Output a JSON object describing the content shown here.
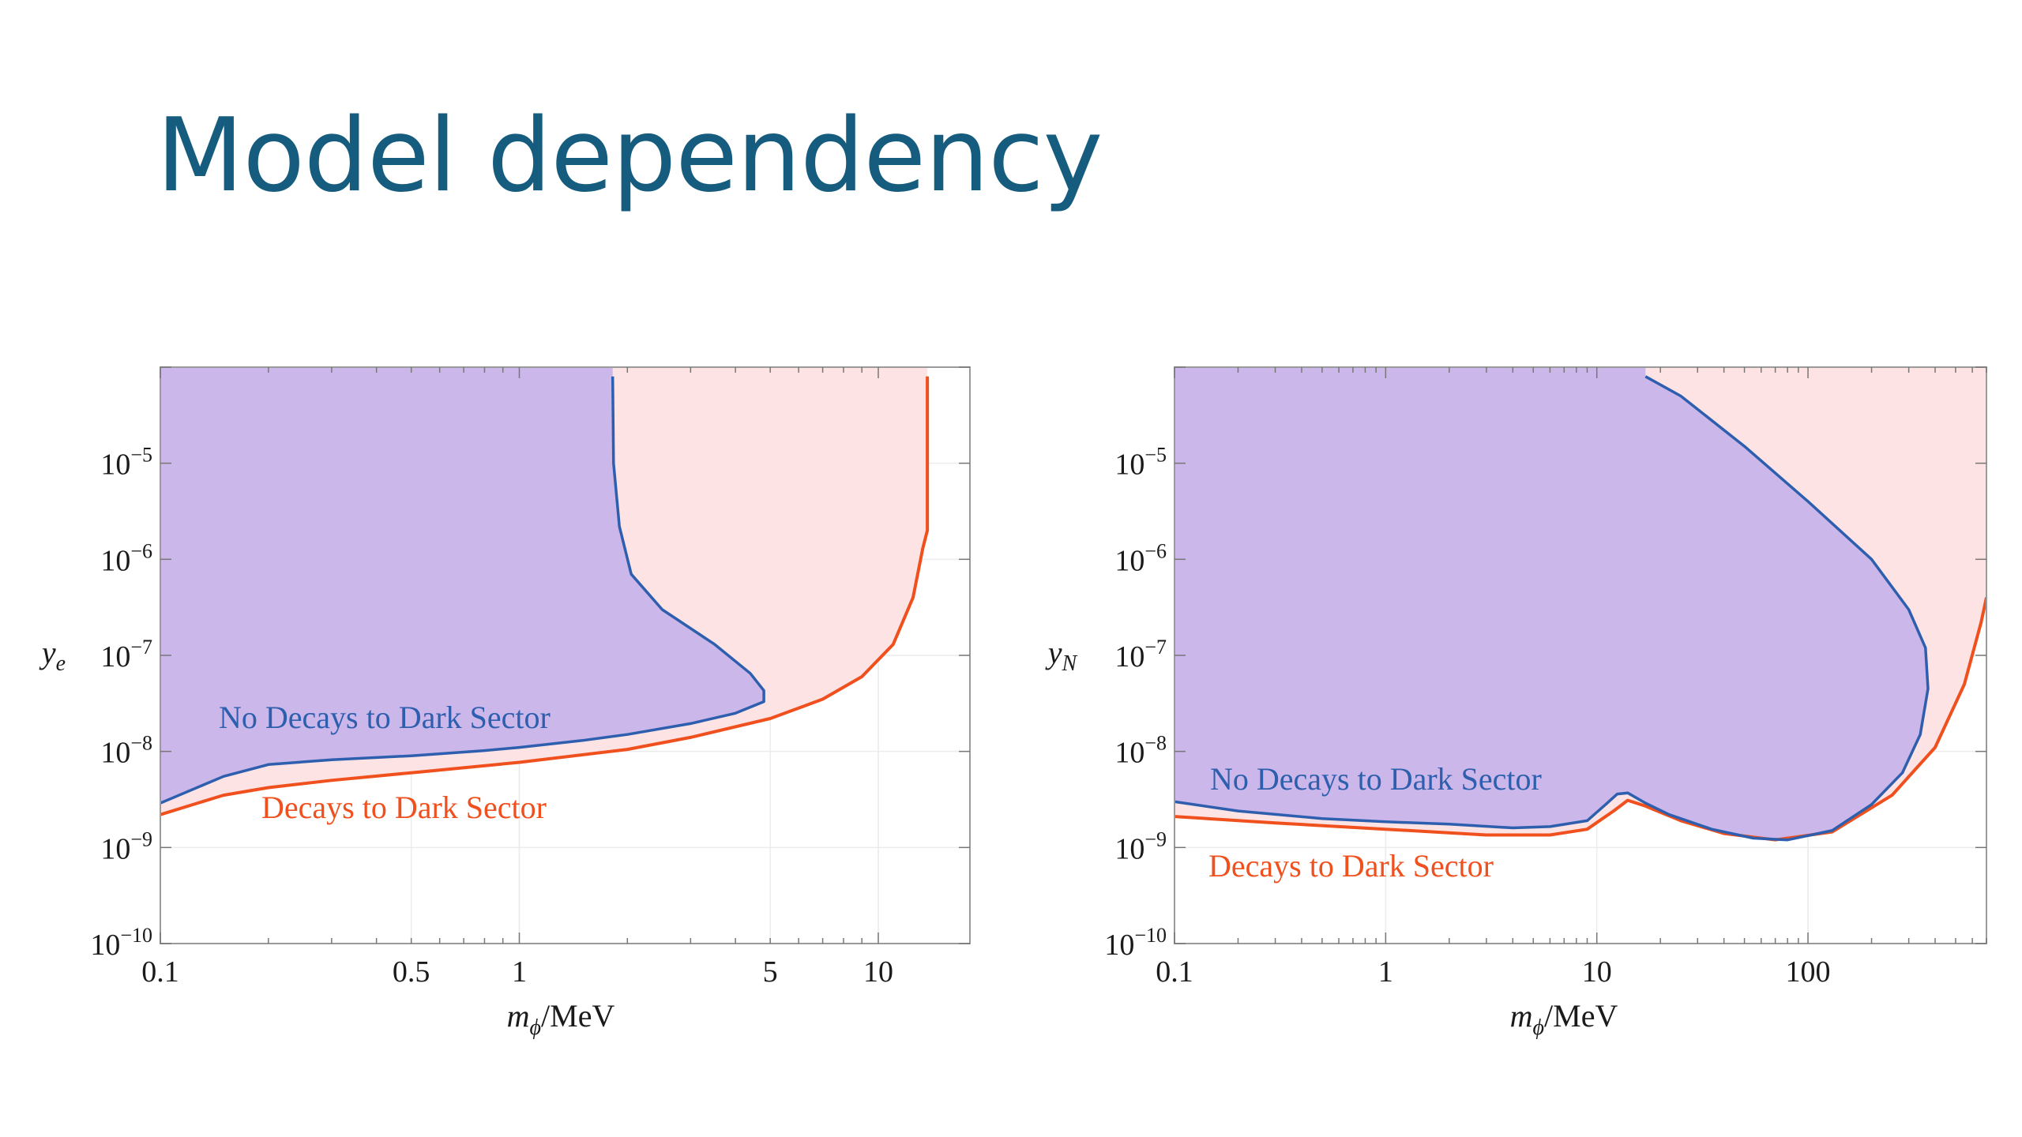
{
  "slide": {
    "title": "Model dependency"
  },
  "colors": {
    "title": "#155c7e",
    "blue_curve": "#2e5fae",
    "orange_curve": "#f0501e",
    "purple_fill": "#cbb7e9",
    "pink_fill": "#fde3e3"
  },
  "chart_data": [
    {
      "type": "area",
      "x_scale": "log",
      "y_scale": "log",
      "xlim": [
        0.1,
        18
      ],
      "ylim": [
        1e-10,
        0.0001
      ],
      "x_ticks": [
        {
          "v": 0.1,
          "label": "0.1"
        },
        {
          "v": 0.5,
          "label": "0.5"
        },
        {
          "v": 1,
          "label": "1"
        },
        {
          "v": 5,
          "label": "5"
        },
        {
          "v": 10,
          "label": "10"
        }
      ],
      "y_ticks": [
        {
          "v": 1e-10,
          "base": "10",
          "exp": "−10"
        },
        {
          "v": 1e-09,
          "base": "10",
          "exp": "−9"
        },
        {
          "v": 1e-08,
          "base": "10",
          "exp": "−8"
        },
        {
          "v": 1e-07,
          "base": "10",
          "exp": "−7"
        },
        {
          "v": 1e-06,
          "base": "10",
          "exp": "−6"
        },
        {
          "v": 1e-05,
          "base": "10",
          "exp": "−5"
        }
      ],
      "xlabel": {
        "italic": "m",
        "sub": "ϕ",
        "rest": "/MeV"
      },
      "ylabel": {
        "italic": "y",
        "sub": "e"
      },
      "series": [
        {
          "name": "No Decays to Dark Sector",
          "color": "#2e5fae",
          "fill": "#cbb7e9",
          "points": [
            [
              0.1,
              2.9e-09
            ],
            [
              0.15,
              5.5e-09
            ],
            [
              0.2,
              7.3e-09
            ],
            [
              0.3,
              8.2e-09
            ],
            [
              0.5,
              9e-09
            ],
            [
              0.8,
              1.02e-08
            ],
            [
              1.0,
              1.1e-08
            ],
            [
              1.5,
              1.3e-08
            ],
            [
              2.0,
              1.5e-08
            ],
            [
              3.0,
              1.95e-08
            ],
            [
              4.0,
              2.5e-08
            ],
            [
              4.8,
              3.3e-08
            ],
            [
              4.8,
              4.3e-08
            ],
            [
              4.4,
              6.5e-08
            ],
            [
              3.5,
              1.3e-07
            ],
            [
              2.5,
              3e-07
            ],
            [
              2.05,
              7e-07
            ],
            [
              1.9,
              2.2e-06
            ],
            [
              1.83,
              1e-05
            ],
            [
              1.82,
              8e-05
            ]
          ]
        },
        {
          "name": "Decays to Dark Sector",
          "color": "#f0501e",
          "fill": "#fde3e3",
          "points": [
            [
              0.1,
              2.2e-09
            ],
            [
              0.15,
              3.5e-09
            ],
            [
              0.2,
              4.2e-09
            ],
            [
              0.3,
              5e-09
            ],
            [
              0.5,
              6e-09
            ],
            [
              1.0,
              7.7e-09
            ],
            [
              2.0,
              1.05e-08
            ],
            [
              3.0,
              1.4e-08
            ],
            [
              5.0,
              2.2e-08
            ],
            [
              7.0,
              3.5e-08
            ],
            [
              9.0,
              6e-08
            ],
            [
              11.0,
              1.3e-07
            ],
            [
              12.5,
              4e-07
            ],
            [
              13.3,
              1.3e-06
            ],
            [
              13.7,
              2e-06
            ],
            [
              13.7,
              8e-05
            ]
          ]
        }
      ],
      "annotations": [
        {
          "text": "No Decays to Dark Sector",
          "color": "#2e5fae"
        },
        {
          "text": "Decays to Dark Sector",
          "color": "#f0501e"
        }
      ]
    },
    {
      "type": "area",
      "x_scale": "log",
      "y_scale": "log",
      "xlim": [
        0.1,
        700
      ],
      "ylim": [
        1e-10,
        0.0001
      ],
      "x_ticks": [
        {
          "v": 0.1,
          "label": "0.1"
        },
        {
          "v": 1,
          "label": "1"
        },
        {
          "v": 10,
          "label": "10"
        },
        {
          "v": 100,
          "label": "100"
        }
      ],
      "y_ticks": [
        {
          "v": 1e-10,
          "base": "10",
          "exp": "−10"
        },
        {
          "v": 1e-09,
          "base": "10",
          "exp": "−9"
        },
        {
          "v": 1e-08,
          "base": "10",
          "exp": "−8"
        },
        {
          "v": 1e-07,
          "base": "10",
          "exp": "−7"
        },
        {
          "v": 1e-06,
          "base": "10",
          "exp": "−6"
        },
        {
          "v": 1e-05,
          "base": "10",
          "exp": "−5"
        }
      ],
      "xlabel": {
        "italic": "m",
        "sub": "ϕ",
        "rest": "/MeV"
      },
      "ylabel": {
        "italic": "y",
        "sub": "N"
      },
      "series": [
        {
          "name": "No Decays to Dark Sector",
          "color": "#2e5fae",
          "fill": "#cbb7e9",
          "points": [
            [
              0.1,
              3e-09
            ],
            [
              0.2,
              2.4e-09
            ],
            [
              0.5,
              2e-09
            ],
            [
              1,
              1.85e-09
            ],
            [
              2,
              1.75e-09
            ],
            [
              4,
              1.6e-09
            ],
            [
              6,
              1.65e-09
            ],
            [
              9,
              1.9e-09
            ],
            [
              11,
              2.8e-09
            ],
            [
              12.5,
              3.6e-09
            ],
            [
              14,
              3.7e-09
            ],
            [
              17,
              2.9e-09
            ],
            [
              22,
              2.2e-09
            ],
            [
              35,
              1.55e-09
            ],
            [
              55,
              1.25e-09
            ],
            [
              80,
              1.2e-09
            ],
            [
              130,
              1.5e-09
            ],
            [
              200,
              2.8e-09
            ],
            [
              280,
              6e-09
            ],
            [
              340,
              1.5e-08
            ],
            [
              370,
              4.5e-08
            ],
            [
              360,
              1.2e-07
            ],
            [
              300,
              3e-07
            ],
            [
              200,
              1e-06
            ],
            [
              100,
              4e-06
            ],
            [
              50,
              1.5e-05
            ],
            [
              25,
              5e-05
            ],
            [
              17,
              8e-05
            ]
          ]
        },
        {
          "name": "Decays to Dark Sector",
          "color": "#f0501e",
          "fill": "#fde3e3",
          "points": [
            [
              0.1,
              2.1e-09
            ],
            [
              0.3,
              1.8e-09
            ],
            [
              1,
              1.55e-09
            ],
            [
              3,
              1.35e-09
            ],
            [
              6,
              1.35e-09
            ],
            [
              9,
              1.55e-09
            ],
            [
              12,
              2.4e-09
            ],
            [
              14,
              3.1e-09
            ],
            [
              17,
              2.7e-09
            ],
            [
              25,
              1.9e-09
            ],
            [
              40,
              1.4e-09
            ],
            [
              70,
              1.2e-09
            ],
            [
              130,
              1.45e-09
            ],
            [
              250,
              3.5e-09
            ],
            [
              400,
              1.1e-08
            ],
            [
              550,
              5e-08
            ],
            [
              660,
              2.2e-07
            ],
            [
              700,
              4e-07
            ]
          ]
        }
      ],
      "annotations": [
        {
          "text": "No Decays to Dark Sector",
          "color": "#2e5fae"
        },
        {
          "text": "Decays to Dark Sector",
          "color": "#f0501e"
        }
      ]
    }
  ]
}
